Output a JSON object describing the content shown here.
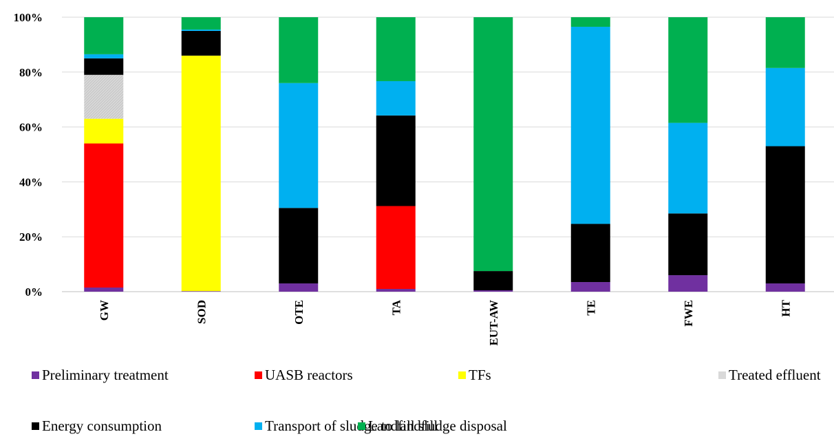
{
  "chart_data": {
    "type": "bar",
    "stacked": true,
    "percent": true,
    "categories": [
      "GW",
      "SOD",
      "OTE",
      "TA",
      "EUT-AW",
      "TE",
      "FWE",
      "HT"
    ],
    "ylim": [
      0,
      100
    ],
    "yticks": [
      "0%",
      "20%",
      "40%",
      "60%",
      "80%",
      "100%"
    ],
    "grid": true,
    "legend_position": "bottom",
    "series": [
      {
        "name": "Preliminary treatment",
        "color": "#7030A0",
        "values": [
          1.5,
          0.2,
          3,
          1,
          0.5,
          3.5,
          6,
          3
        ]
      },
      {
        "name": "UASB reactors",
        "color": "#FF0000",
        "values": [
          52.5,
          0,
          0,
          30.2,
          0,
          0,
          0,
          0
        ]
      },
      {
        "name": "TFs",
        "color": "#FFFF00",
        "values": [
          9,
          85.8,
          0,
          0,
          0,
          0,
          0,
          0
        ]
      },
      {
        "name": "Treated effluent",
        "color": "#D9D9D9",
        "values": [
          16,
          0,
          0,
          0,
          0,
          0,
          0,
          0
        ]
      },
      {
        "name": "Energy consumption",
        "color": "#000000",
        "values": [
          6,
          9,
          27.5,
          33,
          7,
          21.2,
          22.5,
          50
        ]
      },
      {
        "name": "Transport of sludge to landfill",
        "color": "#00B0F0",
        "values": [
          1.5,
          0.5,
          45.5,
          12.5,
          0,
          71.8,
          33,
          28.5
        ]
      },
      {
        "name": "Landfill sludge disposal",
        "color": "#00B050",
        "values": [
          13.5,
          4.5,
          24,
          23.3,
          92.5,
          3.5,
          38.5,
          18.5
        ]
      }
    ]
  }
}
